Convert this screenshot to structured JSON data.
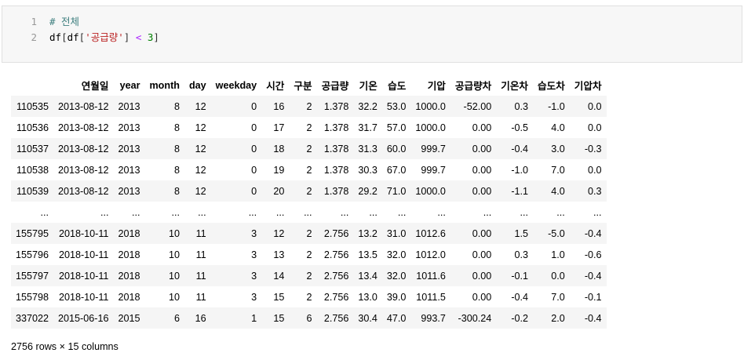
{
  "code_cell": {
    "lines": [
      {
        "number": "1",
        "comment": "# 전체"
      },
      {
        "number": "2",
        "var1": "df",
        "lb1": "[",
        "var2": "df",
        "lb2": "[",
        "str": "'공급량'",
        "rb1": "]",
        "op": "<",
        "num": "3",
        "rb2": "]"
      }
    ]
  },
  "table": {
    "columns": [
      "",
      "연월일",
      "year",
      "month",
      "day",
      "weekday",
      "시간",
      "구분",
      "공급량",
      "기온",
      "습도",
      "기압",
      "공급량차",
      "기온차",
      "습도차",
      "기압차"
    ],
    "rows": [
      [
        "110535",
        "2013-08-12",
        "2013",
        "8",
        "12",
        "0",
        "16",
        "2",
        "1.378",
        "32.2",
        "53.0",
        "1000.0",
        "-52.00",
        "0.3",
        "-1.0",
        "0.0"
      ],
      [
        "110536",
        "2013-08-12",
        "2013",
        "8",
        "12",
        "0",
        "17",
        "2",
        "1.378",
        "31.7",
        "57.0",
        "1000.0",
        "0.00",
        "-0.5",
        "4.0",
        "0.0"
      ],
      [
        "110537",
        "2013-08-12",
        "2013",
        "8",
        "12",
        "0",
        "18",
        "2",
        "1.378",
        "31.3",
        "60.0",
        "999.7",
        "0.00",
        "-0.4",
        "3.0",
        "-0.3"
      ],
      [
        "110538",
        "2013-08-12",
        "2013",
        "8",
        "12",
        "0",
        "19",
        "2",
        "1.378",
        "30.3",
        "67.0",
        "999.7",
        "0.00",
        "-1.0",
        "7.0",
        "0.0"
      ],
      [
        "110539",
        "2013-08-12",
        "2013",
        "8",
        "12",
        "0",
        "20",
        "2",
        "1.378",
        "29.2",
        "71.0",
        "1000.0",
        "0.00",
        "-1.1",
        "4.0",
        "0.3"
      ],
      [
        "...",
        "...",
        "...",
        "...",
        "...",
        "...",
        "...",
        "...",
        "...",
        "...",
        "...",
        "...",
        "...",
        "...",
        "...",
        "..."
      ],
      [
        "155795",
        "2018-10-11",
        "2018",
        "10",
        "11",
        "3",
        "12",
        "2",
        "2.756",
        "13.2",
        "31.0",
        "1012.6",
        "0.00",
        "1.5",
        "-5.0",
        "-0.4"
      ],
      [
        "155796",
        "2018-10-11",
        "2018",
        "10",
        "11",
        "3",
        "13",
        "2",
        "2.756",
        "13.5",
        "32.0",
        "1012.0",
        "0.00",
        "0.3",
        "1.0",
        "-0.6"
      ],
      [
        "155797",
        "2018-10-11",
        "2018",
        "10",
        "11",
        "3",
        "14",
        "2",
        "2.756",
        "13.4",
        "32.0",
        "1011.6",
        "0.00",
        "-0.1",
        "0.0",
        "-0.4"
      ],
      [
        "155798",
        "2018-10-11",
        "2018",
        "10",
        "11",
        "3",
        "15",
        "2",
        "2.756",
        "13.0",
        "39.0",
        "1011.5",
        "0.00",
        "-0.4",
        "7.0",
        "-0.1"
      ],
      [
        "337022",
        "2015-06-16",
        "2015",
        "6",
        "16",
        "1",
        "15",
        "6",
        "2.756",
        "30.4",
        "47.0",
        "993.7",
        "-300.24",
        "-0.2",
        "2.0",
        "-0.4"
      ]
    ]
  },
  "summary": "2756 rows × 15 columns"
}
